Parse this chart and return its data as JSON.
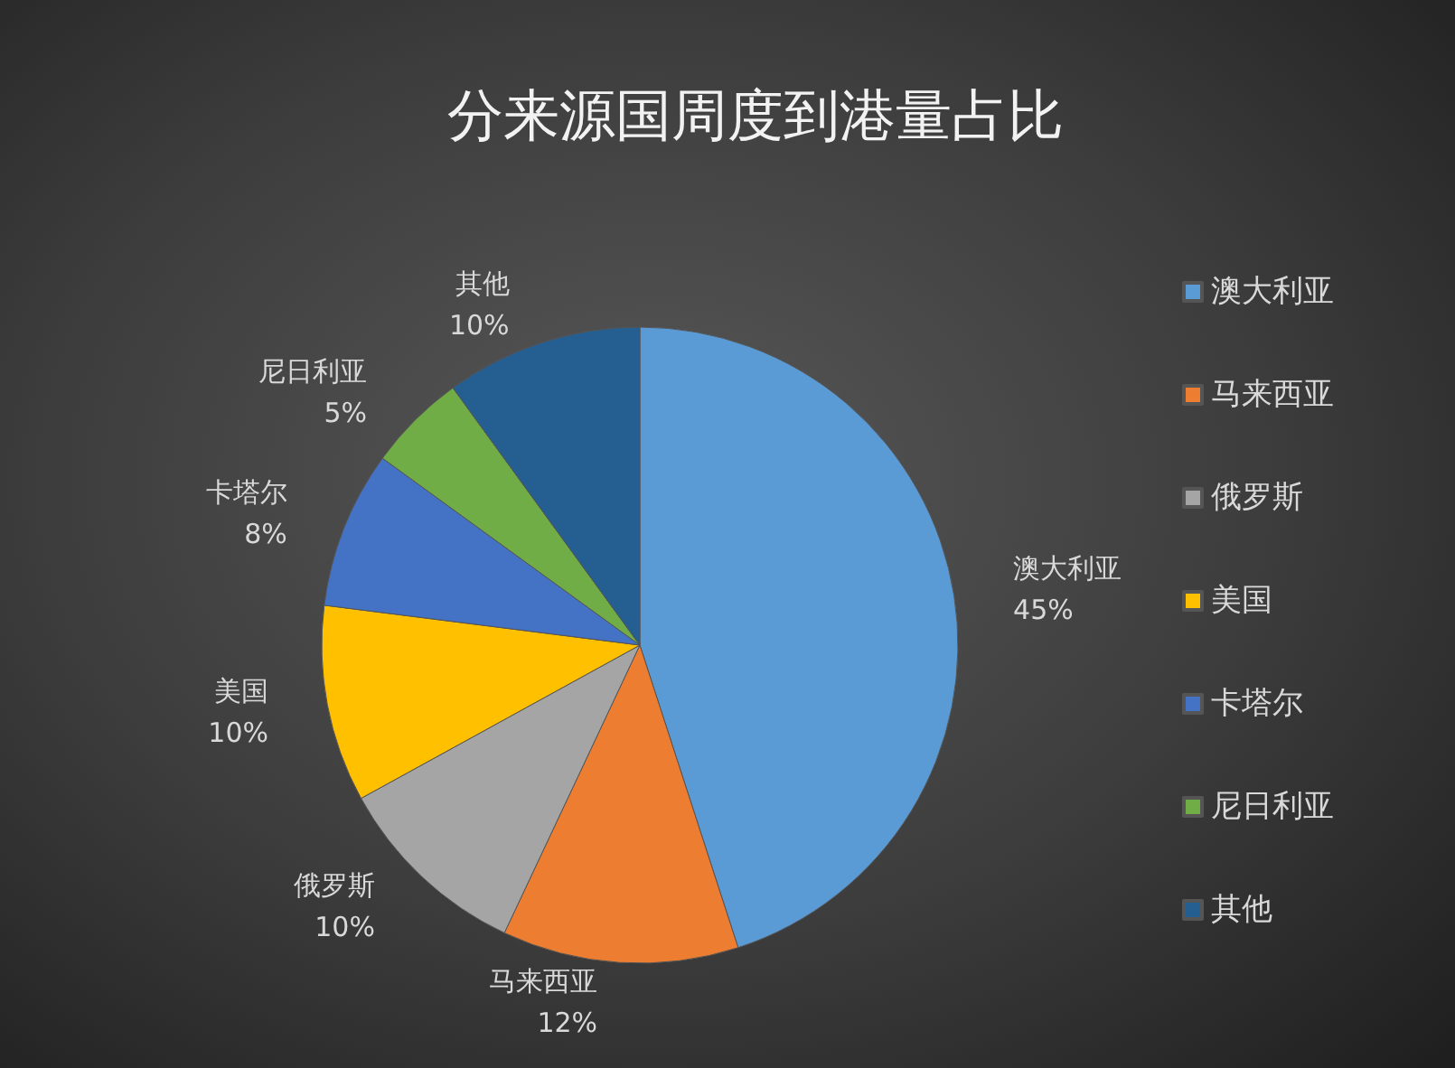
{
  "chart_data": {
    "type": "pie",
    "title": "分来源国周度到港量占比",
    "categories": [
      "澳大利亚",
      "马来西亚",
      "俄罗斯",
      "美国",
      "卡塔尔",
      "尼日利亚",
      "其他"
    ],
    "values": [
      45,
      12,
      10,
      10,
      8,
      5,
      10
    ],
    "value_labels": [
      "45%",
      "12%",
      "10%",
      "10%",
      "8%",
      "5%",
      "10%"
    ],
    "colors": [
      "#5b9bd5",
      "#ed7d31",
      "#a5a5a5",
      "#ffc000",
      "#4472c4",
      "#70ad47",
      "#255e91"
    ],
    "legend": "right"
  }
}
